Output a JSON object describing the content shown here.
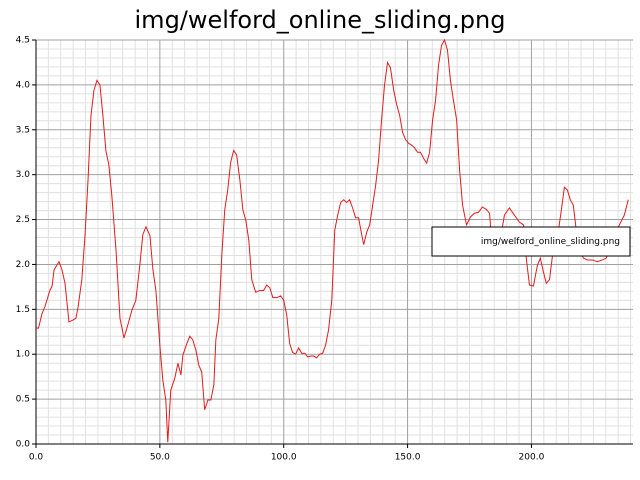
{
  "chart_data": {
    "type": "line",
    "title": "img/welford_online_sliding.png",
    "x": [
      0,
      1,
      2.4,
      3.6,
      5.6,
      6.5,
      7.3,
      9.3,
      10.5,
      11.7,
      13.3,
      14.9,
      16.1,
      16.9,
      18.5,
      19.8,
      21,
      22.2,
      23.4,
      24.6,
      25.8,
      27,
      28.2,
      29.4,
      30.6,
      32.3,
      33.9,
      35.5,
      37.1,
      38.7,
      40.3,
      41.9,
      43.1,
      44.4,
      46,
      47.2,
      48.4,
      50,
      51.2,
      52.4,
      53.2,
      54.4,
      56,
      57.3,
      58.5,
      59.3,
      60.9,
      62.1,
      63.3,
      64.5,
      65.7,
      66.9,
      68.1,
      69.4,
      70.6,
      71.8,
      72.6,
      73.8,
      75,
      76.2,
      77.4,
      78.6,
      79.8,
      81,
      82.3,
      83.5,
      84.7,
      85.9,
      87.1,
      88.7,
      90.3,
      91.9,
      93.1,
      94.4,
      95.6,
      97.2,
      98.8,
      100,
      101.2,
      102.4,
      103.6,
      104.8,
      106,
      107.3,
      108.5,
      109.7,
      110.9,
      112.1,
      113.3,
      114.5,
      115.7,
      116.9,
      118.1,
      119.4,
      120.6,
      121.8,
      123,
      124.2,
      125.4,
      126.6,
      127.8,
      129,
      130.2,
      131.5,
      132.3,
      133.5,
      134.7,
      135.9,
      137.1,
      138.3,
      139.5,
      140.7,
      141.9,
      143.1,
      144.4,
      145.6,
      146.8,
      148,
      149.2,
      150.4,
      151.6,
      152.8,
      154,
      155.2,
      156.5,
      157.7,
      158.9,
      160.1,
      161.3,
      162.5,
      163.7,
      164.9,
      166.1,
      167.3,
      168.5,
      169.8,
      171,
      172.2,
      173.8,
      175.4,
      177,
      178.6,
      180.2,
      181.9,
      183.1,
      183.9,
      187.1,
      189.1,
      191.1,
      193.1,
      195.2,
      196.8,
      198,
      199.2,
      200.8,
      202.4,
      203.6,
      204.8,
      206,
      207.3,
      208.5,
      209.7,
      210.9,
      212.1,
      213.3,
      214.5,
      215.7,
      216.9,
      218.1,
      219.4,
      221,
      222.6,
      224.6,
      226.6,
      228.6,
      230.2,
      231.5,
      233.5,
      235.5,
      237.5,
      239.1
    ],
    "series": [
      {
        "name": "img/welford_online_sliding.png",
        "color": "#e41a1c",
        "values": [
          1.29,
          1.29,
          1.45,
          1.53,
          1.71,
          1.76,
          1.94,
          2.03,
          1.94,
          1.79,
          1.36,
          1.38,
          1.4,
          1.51,
          1.83,
          2.33,
          2.94,
          3.66,
          3.94,
          4.05,
          4.0,
          3.66,
          3.27,
          3.11,
          2.77,
          2.16,
          1.4,
          1.18,
          1.33,
          1.49,
          1.6,
          1.99,
          2.33,
          2.42,
          2.32,
          1.94,
          1.71,
          1.1,
          0.71,
          0.49,
          0.02,
          0.6,
          0.73,
          0.9,
          0.77,
          0.99,
          1.12,
          1.2,
          1.16,
          1.05,
          0.88,
          0.8,
          0.38,
          0.49,
          0.49,
          0.66,
          1.16,
          1.4,
          2.1,
          2.61,
          2.83,
          3.14,
          3.27,
          3.22,
          2.94,
          2.61,
          2.49,
          2.27,
          1.83,
          1.69,
          1.71,
          1.71,
          1.77,
          1.74,
          1.63,
          1.63,
          1.65,
          1.6,
          1.44,
          1.12,
          1.02,
          1.0,
          1.07,
          1.01,
          1.01,
          0.97,
          0.98,
          0.98,
          0.96,
          1.0,
          1.01,
          1.1,
          1.27,
          1.6,
          2.38,
          2.55,
          2.69,
          2.72,
          2.69,
          2.72,
          2.63,
          2.52,
          2.52,
          2.33,
          2.22,
          2.36,
          2.44,
          2.66,
          2.88,
          3.16,
          3.61,
          4.0,
          4.25,
          4.19,
          3.94,
          3.78,
          3.66,
          3.47,
          3.39,
          3.35,
          3.33,
          3.3,
          3.25,
          3.25,
          3.18,
          3.13,
          3.25,
          3.61,
          3.83,
          4.22,
          4.44,
          4.5,
          4.39,
          4.05,
          3.83,
          3.61,
          3.05,
          2.66,
          2.44,
          2.53,
          2.57,
          2.58,
          2.64,
          2.61,
          2.57,
          2.27,
          2.22,
          2.55,
          2.63,
          2.55,
          2.47,
          2.44,
          2.05,
          1.77,
          1.76,
          1.99,
          2.07,
          1.92,
          1.79,
          1.83,
          2.1,
          2.25,
          2.38,
          2.61,
          2.86,
          2.83,
          2.72,
          2.66,
          2.38,
          2.16,
          2.07,
          2.05,
          2.05,
          2.03,
          2.05,
          2.07,
          2.16,
          2.33,
          2.44,
          2.55,
          2.72
        ]
      }
    ],
    "xlim": [
      0,
      241
    ],
    "ylim": [
      0,
      4.5
    ],
    "xticks": [
      {
        "value": 0,
        "label": "0.0"
      },
      {
        "value": 50,
        "label": "50.0"
      },
      {
        "value": 100,
        "label": "100.0"
      },
      {
        "value": 150,
        "label": "150.0"
      },
      {
        "value": 200,
        "label": "200.0"
      }
    ],
    "yticks": [
      {
        "value": 0,
        "label": "0.0"
      },
      {
        "value": 0.5,
        "label": "0.5"
      },
      {
        "value": 1,
        "label": "1.0"
      },
      {
        "value": 1.5,
        "label": "1.5"
      },
      {
        "value": 2,
        "label": "2.0"
      },
      {
        "value": 2.5,
        "label": "2.5"
      },
      {
        "value": 3,
        "label": "3.0"
      },
      {
        "value": 3.5,
        "label": "3.5"
      },
      {
        "value": 4,
        "label": "4.0"
      },
      {
        "value": 4.5,
        "label": "4.5"
      }
    ],
    "xminor": [
      5,
      10,
      15,
      20,
      25,
      30,
      35,
      40,
      45,
      55,
      60,
      65,
      70,
      75,
      80,
      85,
      90,
      95,
      105,
      110,
      115,
      120,
      125,
      130,
      135,
      140,
      145,
      155,
      160,
      165,
      170,
      175,
      180,
      185,
      190,
      195,
      205,
      210,
      215,
      220,
      225,
      230,
      235,
      240
    ],
    "yminor": [
      0.1,
      0.2,
      0.3,
      0.4,
      0.6,
      0.7,
      0.8,
      0.9,
      1.1,
      1.2,
      1.3,
      1.4,
      1.6,
      1.7,
      1.8,
      1.9,
      2.1,
      2.2,
      2.3,
      2.4,
      2.6,
      2.7,
      2.8,
      2.9,
      3.1,
      3.2,
      3.3,
      3.4,
      3.6,
      3.7,
      3.8,
      3.9,
      4.1,
      4.2,
      4.3,
      4.4
    ],
    "grid": true,
    "legend": "right"
  }
}
